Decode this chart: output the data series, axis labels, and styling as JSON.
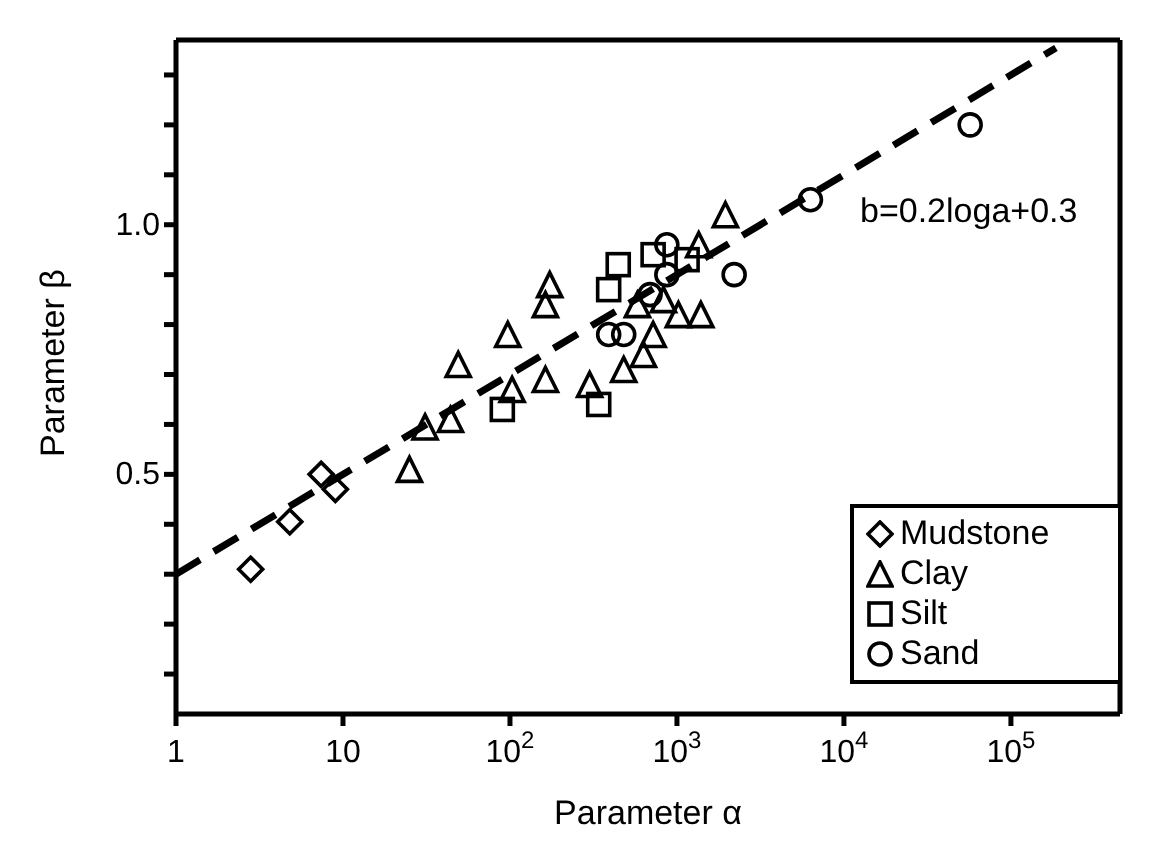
{
  "chart_data": {
    "type": "scatter",
    "xlabel": "Parameter α",
    "ylabel": "Parameter β",
    "annotations": [
      "b=0.2loga+0.3"
    ],
    "log": "x",
    "legend": "bottom right",
    "xlim": [
      1,
      450000
    ],
    "xticks": [
      1,
      10,
      {
        "value": 100,
        "label": "10$^{2}$"
      },
      {
        "value": 1000,
        "label": "10$^{3}$"
      },
      {
        "value": 10000,
        "label": "10$^{4}$"
      },
      {
        "value": 100000,
        "label": "10$^{5}$"
      }
    ],
    "ylim": [
      0.02,
      1.37
    ],
    "yticks": [
      {
        "value": 0.1,
        "label": null
      },
      {
        "value": 0.2,
        "label": null
      },
      {
        "value": 0.3,
        "label": null
      },
      {
        "value": 0.4,
        "label": null
      },
      {
        "value": 0.5,
        "label": "0.5"
      },
      {
        "value": 0.6,
        "label": null
      },
      {
        "value": 0.7,
        "label": null
      },
      {
        "value": 0.8,
        "label": null
      },
      {
        "value": 0.9,
        "label": null
      },
      {
        "value": 1.0,
        "label": "1.0"
      },
      {
        "value": 1.1,
        "label": null
      },
      {
        "value": 1.2,
        "label": null
      },
      {
        "value": 1.3,
        "label": null
      }
    ],
    "series": [
      {
        "name": "Mudstone",
        "marker": "diamond",
        "color": "#000000",
        "x": [
          2.8,
          4.8,
          7.4,
          9
        ],
        "values": [
          0.31,
          0.405,
          0.5,
          0.47
        ]
      },
      {
        "name": "Clay",
        "marker": "triangle",
        "color": "#000000",
        "x": [
          25,
          31,
          44,
          49,
          97,
          103,
          163,
          173,
          163,
          300,
          480,
          630,
          720,
          1020,
          1390,
          1950,
          1350,
          830,
          580
        ],
        "values": [
          0.51,
          0.595,
          0.61,
          0.72,
          0.78,
          0.67,
          0.69,
          0.88,
          0.84,
          0.68,
          0.71,
          0.74,
          0.78,
          0.82,
          0.82,
          1.02,
          0.96,
          0.85,
          0.84
        ]
      },
      {
        "name": "Silt",
        "marker": "square",
        "color": "#000000",
        "x": [
          90,
          340,
          445,
          390,
          720,
          1150
        ],
        "values": [
          0.63,
          0.64,
          0.92,
          0.87,
          0.94,
          0.93
        ]
      },
      {
        "name": "Sand",
        "marker": "circle",
        "color": "#000000",
        "x": [
          6300,
          57000,
          2200,
          390,
          480,
          870,
          690,
          870
        ],
        "values": [
          1.05,
          1.2,
          0.9,
          0.78,
          0.78,
          0.96,
          0.86,
          0.9
        ]
      },
      {
        "type": "line",
        "line_style": "dashed",
        "color": "#000000",
        "x": [
          1,
          186000
        ],
        "values": [
          0.3,
          1.354
        ]
      }
    ]
  }
}
